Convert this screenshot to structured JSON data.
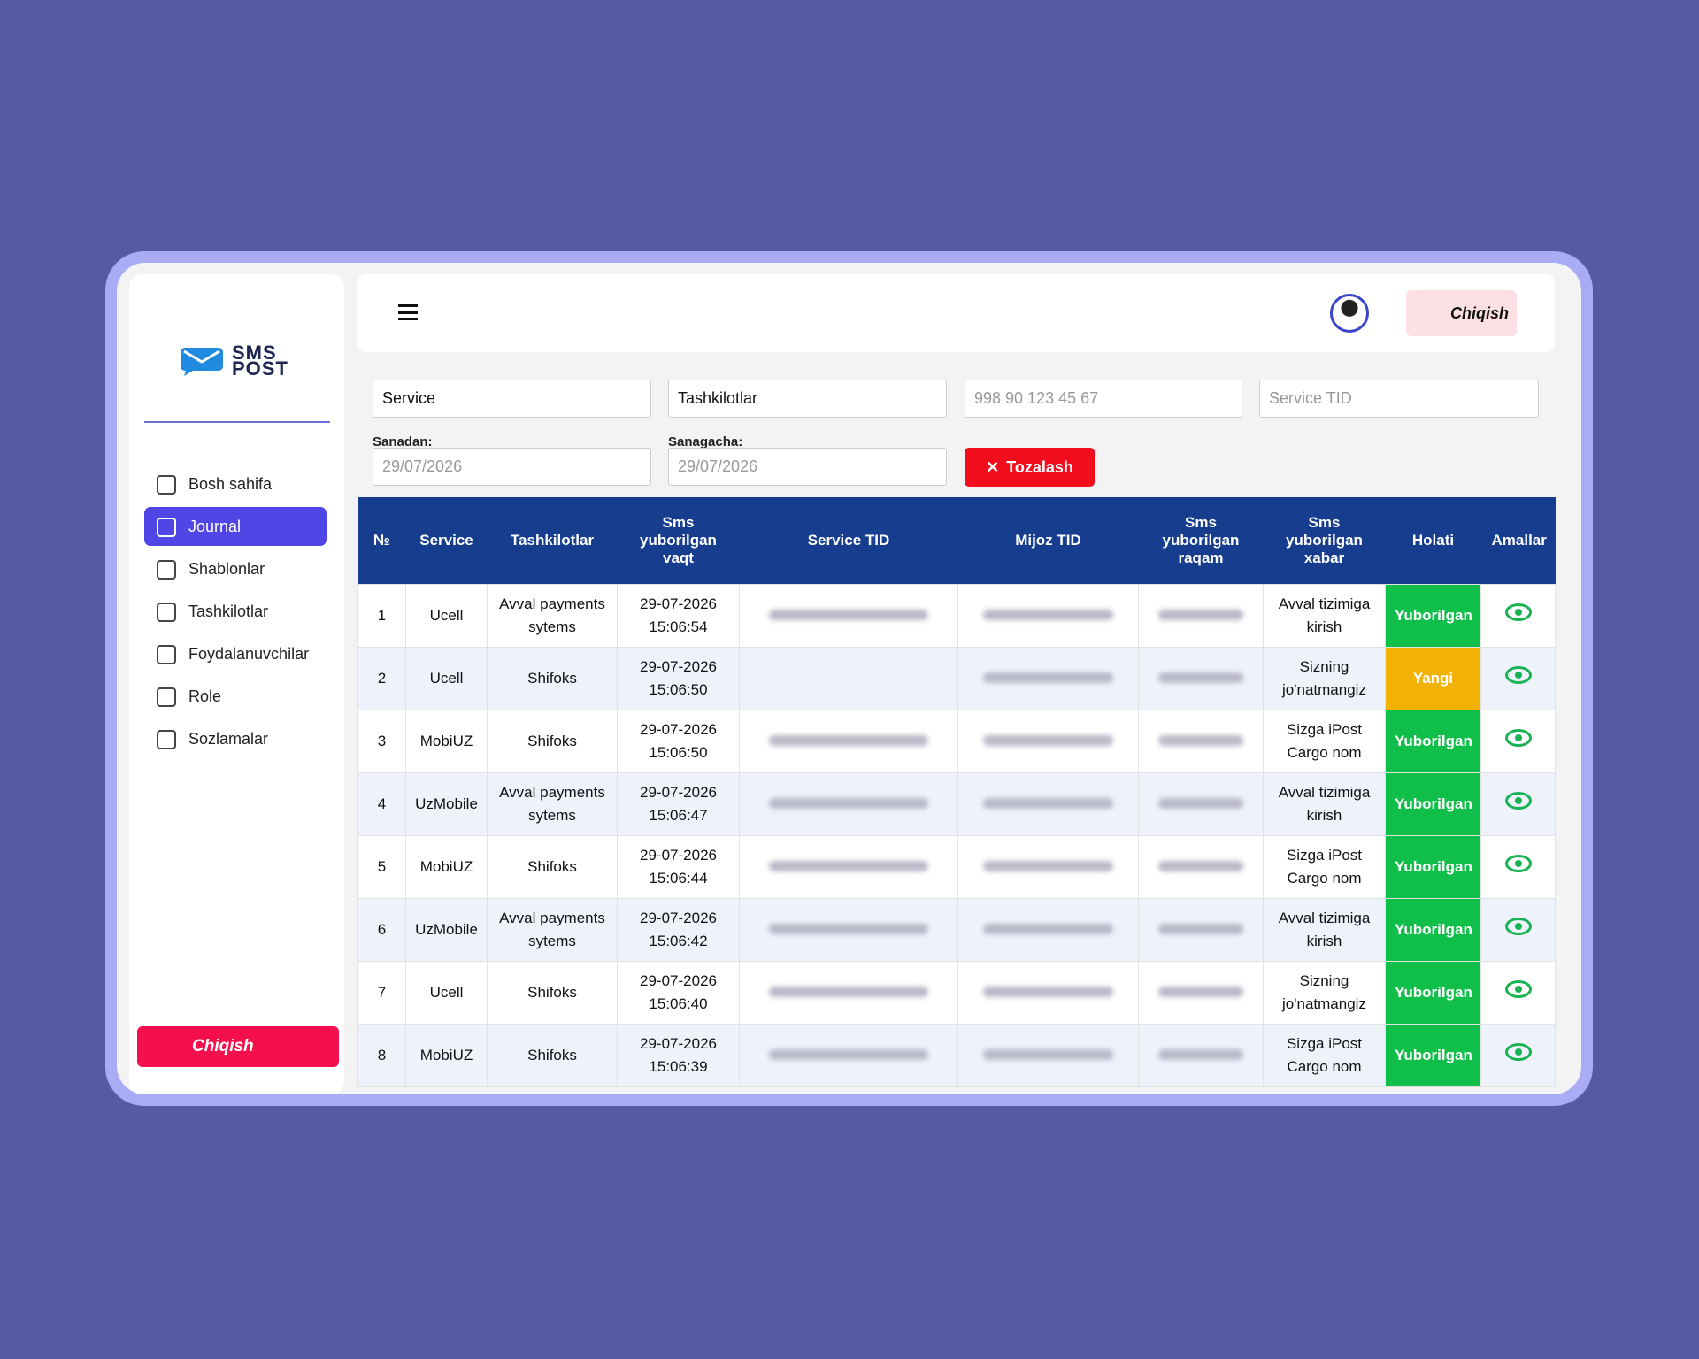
{
  "logo": {
    "line1": "SMS",
    "line2": "POST"
  },
  "sidebar": {
    "items": [
      "Bosh sahifa",
      "Journal",
      "Shablonlar",
      "Tashkilotlar",
      "Foydalanuvchilar",
      "Role",
      "Sozlamalar"
    ],
    "logout": "Chiqish"
  },
  "header": {
    "logout": "Chiqish"
  },
  "filters": {
    "service": "Service",
    "organizations": "Tashkilotlar",
    "phone_placeholder": "998 90 123 45 67",
    "tid_placeholder": "Service TID",
    "from_label": "Sanadan:",
    "to_label": "Sanagacha:",
    "from_date": "29/07/2026",
    "to_date": "29/07/2026",
    "clear": "Tozalash"
  },
  "table": {
    "headers": [
      "№",
      "Service",
      "Tashkilotlar",
      "Sms yuborilgan vaqt",
      "Service TID",
      "Mijoz TID",
      "Sms yuborilgan raqam",
      "Sms yuborilgan xabar",
      "Holati",
      "Amallar"
    ],
    "rows": [
      [
        "1",
        "Ucell",
        "Avval payments sytems",
        "29-07-2026 15:06:54",
        "Avval tizimiga kirish",
        "Yuborilgan"
      ],
      [
        "2",
        "Ucell",
        "Shifoks",
        "29-07-2026 15:06:50",
        "Sizning jo'natmangiz",
        "Yangi"
      ],
      [
        "3",
        "MobiUZ",
        "Shifoks",
        "29-07-2026 15:06:50",
        "Sizga iPost Cargo nom",
        "Yuborilgan"
      ],
      [
        "4",
        "UzMobile",
        "Avval payments sytems",
        "29-07-2026 15:06:47",
        "Avval tizimiga kirish",
        "Yuborilgan"
      ],
      [
        "5",
        "MobiUZ",
        "Shifoks",
        "29-07-2026 15:06:44",
        "Sizga iPost Cargo nom",
        "Yuborilgan"
      ],
      [
        "6",
        "UzMobile",
        "Avval payments sytems",
        "29-07-2026 15:06:42",
        "Avval tizimiga kirish",
        "Yuborilgan"
      ],
      [
        "7",
        "Ucell",
        "Shifoks",
        "29-07-2026 15:06:40",
        "Sizning jo'natmangiz",
        "Yuborilgan"
      ],
      [
        "8",
        "MobiUZ",
        "Shifoks",
        "29-07-2026 15:06:39",
        "Sizga iPost Cargo nom",
        "Yuborilgan"
      ]
    ]
  }
}
